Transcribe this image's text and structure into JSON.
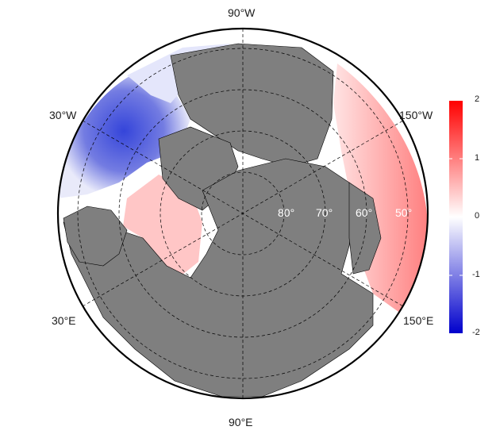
{
  "map": {
    "projection": "north-polar-stereographic",
    "land_color": "#7f7f7f",
    "border_color": "#000000",
    "longitude_labels": {
      "top": "90°W",
      "bottom": "90°E",
      "upper_left": "30°W",
      "lower_left": "30°E",
      "upper_right": "150°W",
      "lower_right": "150°E"
    },
    "latitude_labels": [
      "80°",
      "70°",
      "60°",
      "50°"
    ]
  },
  "colorbar": {
    "ticks": [
      "2",
      "1",
      "0",
      "-1",
      "-2"
    ],
    "min": -2,
    "max": 2,
    "colors": {
      "high": "#ff0000",
      "mid": "#ffffff",
      "low": "#0000cc"
    }
  }
}
